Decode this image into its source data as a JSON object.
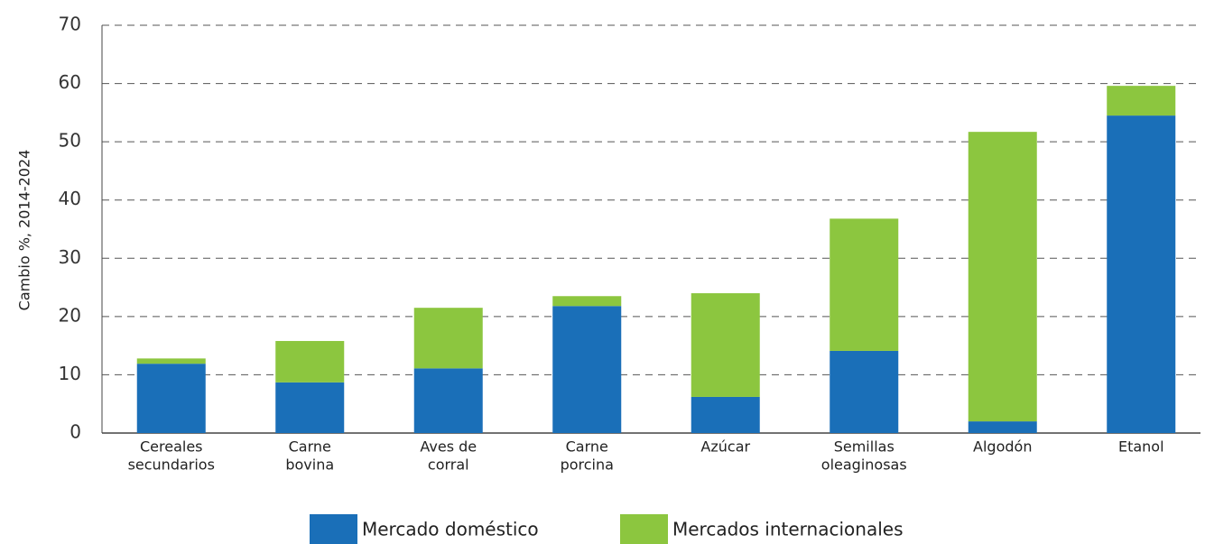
{
  "chart_data": {
    "type": "stacked_bar",
    "ylabel": "Cambio %, 2014-2024",
    "categories": [
      [
        "Cereales",
        "secundarios"
      ],
      [
        "Carne",
        "bovina"
      ],
      [
        "Aves de",
        "corral"
      ],
      [
        "Carne",
        "porcina"
      ],
      [
        "Azúcar"
      ],
      [
        "Semillas",
        "oleaginosas"
      ],
      [
        "Algodón"
      ],
      [
        "Etanol"
      ]
    ],
    "series": [
      {
        "name": "Mercado doméstico",
        "color": "#1a6fb8",
        "values": [
          11.9,
          8.7,
          11.1,
          21.8,
          6.2,
          14.1,
          2.0,
          54.5
        ]
      },
      {
        "name": "Mercados internacionales",
        "color": "#8cc63f",
        "values": [
          0.9,
          7.1,
          10.4,
          1.7,
          17.8,
          22.7,
          49.7,
          5.1
        ]
      }
    ],
    "ylim": [
      0,
      70
    ],
    "yticks": [
      0,
      10,
      20,
      30,
      40,
      50,
      60,
      70
    ],
    "grid": true
  }
}
